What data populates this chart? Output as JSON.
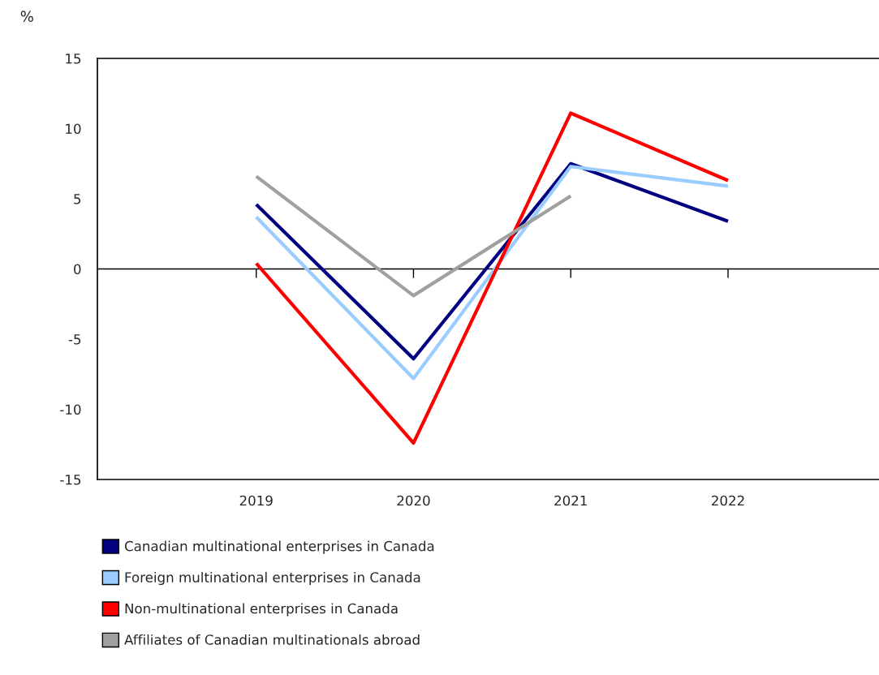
{
  "chart_data": {
    "type": "line",
    "ylabel": "%",
    "categories": [
      "2019",
      "2020",
      "2021",
      "2022"
    ],
    "series": [
      {
        "name": "Canadian multinational enterprises in Canada",
        "color": "#000080",
        "values": [
          4.6,
          -6.4,
          7.5,
          3.4
        ]
      },
      {
        "name": "Foreign multinational enterprises in Canada",
        "color": "#99ccff",
        "values": [
          3.7,
          -7.8,
          7.3,
          5.9
        ]
      },
      {
        "name": "Non-multinational enterprises in Canada",
        "color": "#ff0000",
        "values": [
          0.4,
          -12.4,
          11.1,
          6.3
        ]
      },
      {
        "name": "Affiliates of Canadian multinationals abroad",
        "color": "#a0a0a0",
        "values": [
          6.6,
          -1.9,
          5.2,
          null
        ]
      }
    ],
    "ylim": [
      -15,
      15
    ],
    "yticks": [
      {
        "value": -15,
        "label": "-15"
      },
      {
        "value": -10,
        "label": "-10"
      },
      {
        "value": -5,
        "label": "-5"
      },
      0,
      5,
      10,
      15
    ],
    "ref_lines": [
      {
        "axis": "y",
        "value": 0,
        "color": "#000000"
      }
    ],
    "grid": false,
    "legend": "bottom",
    "marker": "none",
    "line_style": "solid"
  }
}
